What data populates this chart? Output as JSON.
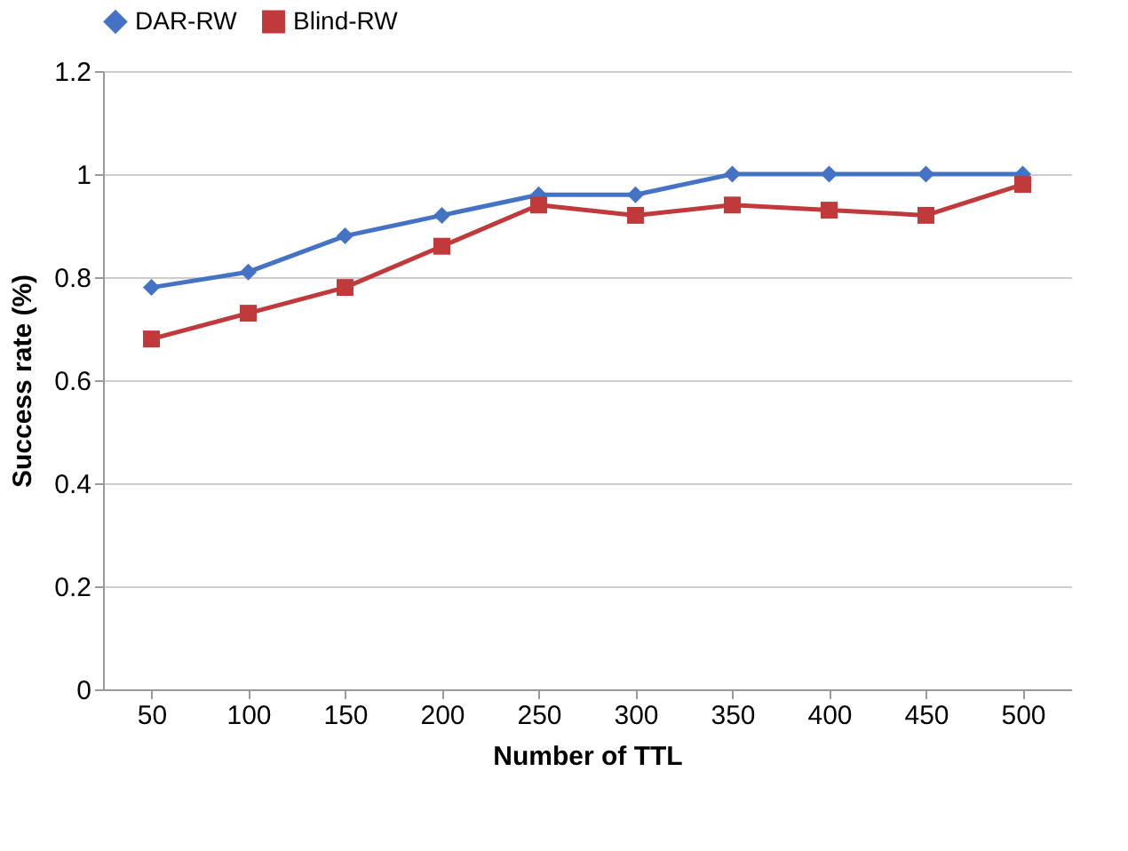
{
  "chart_data": {
    "type": "line",
    "xlabel": "Number of TTL",
    "ylabel": "Success rate (%)",
    "categories": [
      "50",
      "100",
      "150",
      "200",
      "250",
      "300",
      "350",
      "400",
      "450",
      "500"
    ],
    "series": [
      {
        "name": "DAR-RW",
        "color": "#4472c4",
        "marker": "diamond",
        "values": [
          0.78,
          0.81,
          0.88,
          0.92,
          0.96,
          0.96,
          1,
          1,
          1,
          1
        ]
      },
      {
        "name": "Blind-RW",
        "color": "#c0393b",
        "marker": "square",
        "values": [
          0.68,
          0.73,
          0.78,
          0.86,
          0.94,
          0.92,
          0.94,
          0.93,
          0.92,
          0.98
        ]
      }
    ],
    "ylim": [
      0,
      1.2
    ],
    "yticks": [
      0,
      0.2,
      0.4,
      0.6,
      0.8,
      1,
      1.2
    ],
    "grid": "y",
    "legend": "top",
    "line_style": "solid"
  }
}
